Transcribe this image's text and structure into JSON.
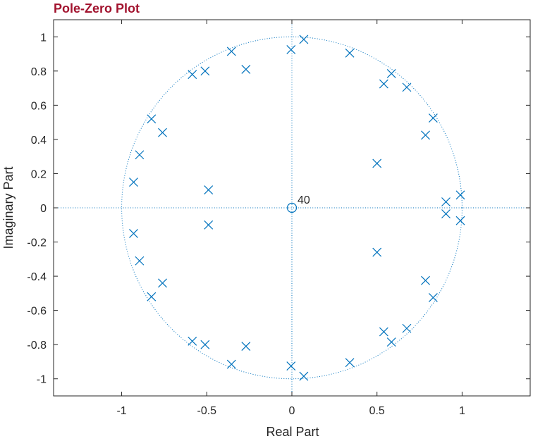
{
  "chart_data": {
    "type": "scatter",
    "title": "Pole-Zero Plot",
    "xlabel": "Real Part",
    "ylabel": "Imaginary Part",
    "xlim": [
      -1.4,
      1.4
    ],
    "ylim": [
      -1.1,
      1.1
    ],
    "xticks": [
      -1,
      -0.5,
      0,
      0.5,
      1
    ],
    "xtick_labels": [
      "-1",
      "-0.5",
      "0",
      "0.5",
      "1"
    ],
    "yticks": [
      -1,
      -0.8,
      -0.6,
      -0.4,
      -0.2,
      0,
      0.2,
      0.4,
      0.6,
      0.8,
      1
    ],
    "ytick_labels": [
      "-1",
      "-0.8",
      "-0.6",
      "-0.4",
      "-0.2",
      "0",
      "0.2",
      "0.4",
      "0.6",
      "0.8",
      "1"
    ],
    "grid": false,
    "unit_circle": true,
    "color": "#0072BD",
    "title_color": "#A2142F",
    "zeros": [
      {
        "x": 0,
        "y": 0,
        "multiplicity": 40,
        "label": "40"
      }
    ],
    "poles": [
      {
        "x": 0.07,
        "y": 0.985
      },
      {
        "x": 0.07,
        "y": -0.985
      },
      {
        "x": -0.005,
        "y": 0.925
      },
      {
        "x": -0.005,
        "y": -0.925
      },
      {
        "x": 0.34,
        "y": 0.905
      },
      {
        "x": 0.34,
        "y": -0.905
      },
      {
        "x": 0.585,
        "y": 0.785
      },
      {
        "x": 0.585,
        "y": -0.785
      },
      {
        "x": 0.54,
        "y": 0.725
      },
      {
        "x": 0.54,
        "y": -0.725
      },
      {
        "x": 0.675,
        "y": 0.705
      },
      {
        "x": 0.675,
        "y": -0.705
      },
      {
        "x": 0.83,
        "y": 0.525
      },
      {
        "x": 0.83,
        "y": -0.525
      },
      {
        "x": 0.785,
        "y": 0.425
      },
      {
        "x": 0.785,
        "y": -0.425
      },
      {
        "x": 0.5,
        "y": 0.26
      },
      {
        "x": 0.5,
        "y": -0.26
      },
      {
        "x": 0.99,
        "y": 0.075
      },
      {
        "x": 0.99,
        "y": -0.075
      },
      {
        "x": 0.905,
        "y": 0.035
      },
      {
        "x": 0.905,
        "y": -0.035
      },
      {
        "x": -0.355,
        "y": 0.915
      },
      {
        "x": -0.355,
        "y": -0.915
      },
      {
        "x": -0.27,
        "y": 0.81
      },
      {
        "x": -0.27,
        "y": -0.81
      },
      {
        "x": -0.51,
        "y": 0.8
      },
      {
        "x": -0.51,
        "y": -0.8
      },
      {
        "x": -0.585,
        "y": 0.78
      },
      {
        "x": -0.585,
        "y": -0.78
      },
      {
        "x": -0.825,
        "y": 0.52
      },
      {
        "x": -0.825,
        "y": -0.52
      },
      {
        "x": -0.76,
        "y": 0.44
      },
      {
        "x": -0.76,
        "y": -0.44
      },
      {
        "x": -0.895,
        "y": 0.31
      },
      {
        "x": -0.895,
        "y": -0.31
      },
      {
        "x": -0.93,
        "y": 0.15
      },
      {
        "x": -0.93,
        "y": -0.15
      },
      {
        "x": -0.49,
        "y": 0.105
      },
      {
        "x": -0.49,
        "y": -0.1
      }
    ]
  }
}
